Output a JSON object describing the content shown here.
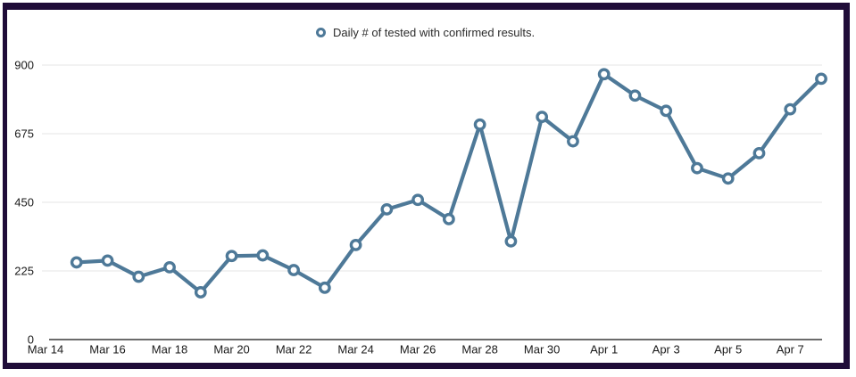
{
  "frame": {
    "border_color": "#1f0c38",
    "background_color": "#ffffff"
  },
  "legend": {
    "label": "Daily # of tested with confirmed results.",
    "marker_icon": "open-circle-icon",
    "marker_color": "#4e7998"
  },
  "chart_data": {
    "type": "line",
    "series": [
      {
        "name": "Daily # of tested with confirmed results.",
        "x": [
          "Mar 15",
          "Mar 16",
          "Mar 17",
          "Mar 18",
          "Mar 19",
          "Mar 20",
          "Mar 21",
          "Mar 22",
          "Mar 23",
          "Mar 24",
          "Mar 25",
          "Mar 26",
          "Mar 27",
          "Mar 28",
          "Mar 29",
          "Mar 30",
          "Mar 31",
          "Apr 1",
          "Apr 2",
          "Apr 3",
          "Apr 4",
          "Apr 5",
          "Apr 6",
          "Apr 7",
          "Apr 8"
        ],
        "values": [
          253,
          259,
          206,
          237,
          155,
          274,
          276,
          228,
          170,
          310,
          427,
          458,
          395,
          705,
          322,
          730,
          650,
          870,
          800,
          750,
          562,
          528,
          611,
          755,
          855
        ]
      }
    ],
    "title": "",
    "xlabel": "",
    "ylabel": "",
    "x_tick_labels": [
      "Mar 14",
      "Mar 16",
      "Mar 18",
      "Mar 20",
      "Mar 22",
      "Mar 24",
      "Mar 26",
      "Mar 28",
      "Mar 30",
      "Apr 1",
      "Apr 3",
      "Apr 5",
      "Apr 7"
    ],
    "y_ticks": [
      0,
      225,
      450,
      675,
      900
    ],
    "ylim": [
      0,
      900
    ],
    "grid": true,
    "legend_position": "top-center",
    "line_color": "#4e7998",
    "marker": "open-circle",
    "marker_fill": "#ffffff",
    "gridline_color": "#e4e4e4",
    "axis_line_color": "#3a3a3a"
  }
}
